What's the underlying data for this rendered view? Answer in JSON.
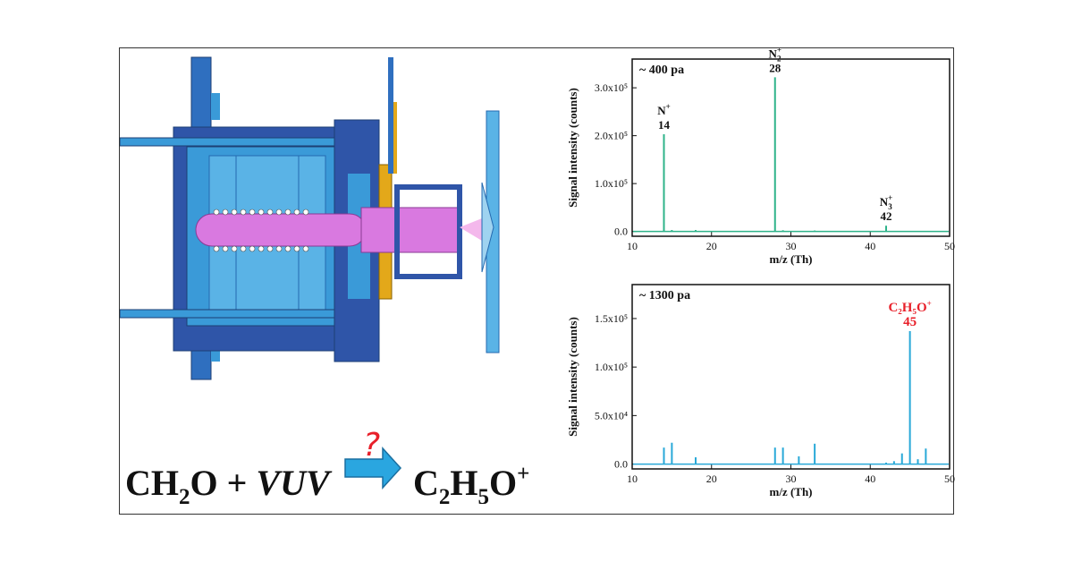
{
  "equation": {
    "left": "CH",
    "left_sub": "2",
    "left_tail": "O + ",
    "vuv": "VUV",
    "question": "?",
    "right": "C",
    "right_sub1": "2",
    "right_mid": "H",
    "right_sub2": "5",
    "right_tail": "O",
    "right_sup": "+"
  },
  "colors": {
    "top_series": "#2fb38a",
    "bottom_series": "#29a9d8",
    "arrow": "#2aa6e0",
    "pink": "#d979e0",
    "blue_dark": "#2f55a8",
    "blue_light": "#3a9ad8",
    "accent_red": "#e8202a"
  },
  "chart_data": [
    {
      "type": "line",
      "annotation": "~ 400 pa",
      "xlabel": "m/z (Th)",
      "ylabel": "Signal intensity (counts)",
      "xlim": [
        10,
        50
      ],
      "ylim": [
        -10000,
        360000
      ],
      "x_ticks": [
        "10",
        "20",
        "30",
        "40",
        "50"
      ],
      "y_ticks": [
        {
          "value": 0,
          "label": "0.0"
        },
        {
          "value": 100000,
          "label": "1.0x10⁵"
        },
        {
          "value": 200000,
          "label": "2.0x10⁵"
        },
        {
          "value": 300000,
          "label": "3.0x10⁵"
        }
      ],
      "peaks": [
        {
          "x": 14,
          "y": 203000
        },
        {
          "x": 15,
          "y": 3000
        },
        {
          "x": 18,
          "y": 3000
        },
        {
          "x": 28,
          "y": 322000
        },
        {
          "x": 29,
          "y": 2500
        },
        {
          "x": 33,
          "y": 2000
        },
        {
          "x": 42,
          "y": 12000
        }
      ],
      "labels": [
        {
          "x": 14,
          "y": 203000,
          "ion": "N",
          "sup": "+",
          "sub": "",
          "mass": "14"
        },
        {
          "x": 28,
          "y": 322000,
          "ion": "N",
          "sup": "+",
          "sub": "2",
          "mass": "28"
        },
        {
          "x": 42,
          "y": 12000,
          "ion": "N",
          "sup": "+",
          "sub": "3",
          "mass": "42"
        }
      ]
    },
    {
      "type": "line",
      "annotation": "~ 1300 pa",
      "xlabel": "m/z (Th)",
      "ylabel": "Signal intensity (counts)",
      "xlim": [
        10,
        50
      ],
      "ylim": [
        -5000,
        185000
      ],
      "x_ticks": [
        "10",
        "20",
        "30",
        "40",
        "50"
      ],
      "y_ticks": [
        {
          "value": 0,
          "label": "0.0"
        },
        {
          "value": 50000,
          "label": "5.0x10⁴"
        },
        {
          "value": 100000,
          "label": "1.0x10⁵"
        },
        {
          "value": 150000,
          "label": "1.5x10⁵"
        }
      ],
      "peaks": [
        {
          "x": 14,
          "y": 17000
        },
        {
          "x": 15,
          "y": 22000
        },
        {
          "x": 18,
          "y": 7000
        },
        {
          "x": 28,
          "y": 17000
        },
        {
          "x": 29,
          "y": 17000
        },
        {
          "x": 31,
          "y": 8000
        },
        {
          "x": 33,
          "y": 21000
        },
        {
          "x": 42,
          "y": 1500
        },
        {
          "x": 43,
          "y": 3000
        },
        {
          "x": 44,
          "y": 11000
        },
        {
          "x": 45,
          "y": 137000
        },
        {
          "x": 46,
          "y": 5000
        },
        {
          "x": 47,
          "y": 16000
        }
      ],
      "labels": [
        {
          "x": 45,
          "y": 137000,
          "ion": "C₂H₅O",
          "sup": "+",
          "sub": "",
          "mass": "45",
          "highlight": true
        }
      ]
    }
  ]
}
